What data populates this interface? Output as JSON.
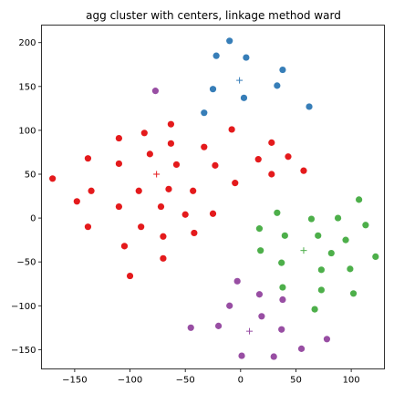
{
  "chart_data": {
    "type": "scatter",
    "title": "agg cluster with centers, linkage method ward",
    "xlabel": "",
    "ylabel": "",
    "xlim": [
      -180,
      130
    ],
    "ylim": [
      -172,
      220
    ],
    "xticks": [
      -150,
      -100,
      -50,
      0,
      50,
      100
    ],
    "yticks": [
      -150,
      -100,
      -50,
      0,
      50,
      100,
      150,
      200
    ],
    "grid": false,
    "legend": "none",
    "series": [
      {
        "color": "#377eb8",
        "marker": "circle",
        "points": [
          [
            -10,
            202
          ],
          [
            -22,
            185
          ],
          [
            5,
            183
          ],
          [
            -25,
            147
          ],
          [
            3,
            137
          ],
          [
            -33,
            120
          ],
          [
            33,
            151
          ],
          [
            38,
            169
          ],
          [
            62,
            127
          ]
        ]
      },
      {
        "color": "#e41a1c",
        "marker": "circle",
        "points": [
          [
            -170,
            45
          ],
          [
            -148,
            19
          ],
          [
            -138,
            68
          ],
          [
            -135,
            31
          ],
          [
            -138,
            -10
          ],
          [
            -110,
            91
          ],
          [
            -110,
            62
          ],
          [
            -110,
            13
          ],
          [
            -105,
            -32
          ],
          [
            -100,
            -66
          ],
          [
            -92,
            31
          ],
          [
            -90,
            -10
          ],
          [
            -87,
            97
          ],
          [
            -82,
            73
          ],
          [
            -72,
            13
          ],
          [
            -70,
            -21
          ],
          [
            -70,
            -46
          ],
          [
            -63,
            107
          ],
          [
            -63,
            85
          ],
          [
            -65,
            33
          ],
          [
            -58,
            61
          ],
          [
            -50,
            4
          ],
          [
            -43,
            31
          ],
          [
            -42,
            -17
          ],
          [
            -33,
            81
          ],
          [
            -25,
            5
          ],
          [
            -23,
            60
          ],
          [
            -8,
            101
          ],
          [
            -5,
            40
          ],
          [
            16,
            67
          ],
          [
            28,
            86
          ],
          [
            28,
            50
          ],
          [
            43,
            70
          ],
          [
            57,
            54
          ]
        ]
      },
      {
        "color": "#4daf4a",
        "marker": "circle",
        "points": [
          [
            33,
            6
          ],
          [
            17,
            -12
          ],
          [
            18,
            -37
          ],
          [
            40,
            -20
          ],
          [
            37,
            -51
          ],
          [
            38,
            -79
          ],
          [
            64,
            -1
          ],
          [
            70,
            -20
          ],
          [
            73,
            -59
          ],
          [
            73,
            -82
          ],
          [
            67,
            -104
          ],
          [
            82,
            -40
          ],
          [
            88,
            0
          ],
          [
            95,
            -25
          ],
          [
            99,
            -58
          ],
          [
            102,
            -86
          ],
          [
            107,
            21
          ],
          [
            113,
            -8
          ],
          [
            122,
            -44
          ]
        ]
      },
      {
        "color": "#984ea3",
        "marker": "circle",
        "points": [
          [
            -77,
            145
          ],
          [
            -45,
            -125
          ],
          [
            -20,
            -123
          ],
          [
            -10,
            -100
          ],
          [
            -3,
            -72
          ],
          [
            1,
            -157
          ],
          [
            17,
            -87
          ],
          [
            19,
            -112
          ],
          [
            30,
            -158
          ],
          [
            37,
            -127
          ],
          [
            38,
            -93
          ],
          [
            55,
            -149
          ],
          [
            78,
            -138
          ]
        ]
      }
    ],
    "centers": [
      {
        "color": "#377eb8",
        "x": -1,
        "y": 157
      },
      {
        "color": "#e41a1c",
        "x": -76,
        "y": 50
      },
      {
        "color": "#4daf4a",
        "x": 57,
        "y": -37
      },
      {
        "color": "#984ea3",
        "x": 8,
        "y": -129
      }
    ]
  }
}
